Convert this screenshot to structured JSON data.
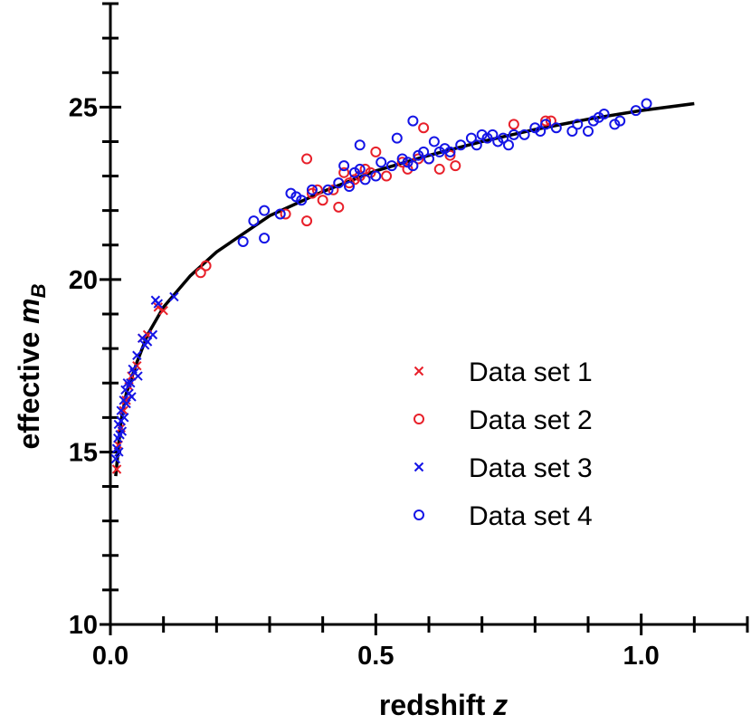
{
  "chart_data": {
    "type": "scatter",
    "xlabel": {
      "text": "redshift ",
      "var": "z"
    },
    "ylabel": {
      "text": "effective ",
      "var": "m",
      "sub": "B"
    },
    "xlim": [
      0,
      1.2
    ],
    "ylim": [
      10,
      28
    ],
    "x_major_ticks": [
      0.0,
      0.5,
      1.0
    ],
    "x_tick_labels": [
      "0.0",
      "0.5",
      "1.0"
    ],
    "y_major_ticks": [
      10,
      15,
      20,
      25
    ],
    "y_tick_labels": [
      "10",
      "15",
      "20",
      "25"
    ],
    "grid": false,
    "legend_position": "lower-right",
    "fit_curve": {
      "x": [
        0.01,
        0.02,
        0.03,
        0.05,
        0.07,
        0.1,
        0.15,
        0.2,
        0.3,
        0.4,
        0.5,
        0.6,
        0.7,
        0.8,
        0.9,
        1.0,
        1.1
      ],
      "y": [
        14.3,
        15.9,
        16.7,
        17.6,
        18.4,
        19.2,
        20.1,
        20.8,
        21.85,
        22.55,
        23.15,
        23.6,
        24.0,
        24.35,
        24.65,
        24.9,
        25.1
      ]
    },
    "series": [
      {
        "name": "Data set 1",
        "marker": "cross",
        "color": "#e8202a",
        "x": [
          0.012,
          0.015,
          0.02,
          0.025,
          0.03,
          0.035,
          0.04,
          0.05,
          0.06,
          0.07,
          0.09,
          0.1
        ],
        "y": [
          14.5,
          15.2,
          15.7,
          16.2,
          16.5,
          16.9,
          17.2,
          17.5,
          18.3,
          18.4,
          19.2,
          19.1
        ]
      },
      {
        "name": "Data set 2",
        "marker": "circle",
        "color": "#e8202a",
        "x": [
          0.17,
          0.18,
          0.33,
          0.37,
          0.37,
          0.38,
          0.39,
          0.4,
          0.42,
          0.43,
          0.44,
          0.45,
          0.46,
          0.47,
          0.48,
          0.49,
          0.5,
          0.52,
          0.55,
          0.56,
          0.58,
          0.59,
          0.6,
          0.62,
          0.64,
          0.65,
          0.76,
          0.82,
          0.83
        ],
        "y": [
          20.2,
          20.4,
          21.9,
          23.5,
          21.7,
          22.5,
          22.6,
          22.3,
          22.6,
          22.1,
          23.1,
          22.8,
          22.9,
          23.0,
          23.2,
          23.1,
          23.7,
          23.0,
          23.4,
          23.2,
          23.5,
          24.4,
          23.5,
          23.2,
          23.6,
          23.3,
          24.5,
          24.6,
          24.6
        ]
      },
      {
        "name": "Data set 3",
        "marker": "cross",
        "color": "#1414e6",
        "x": [
          0.01,
          0.012,
          0.014,
          0.015,
          0.016,
          0.018,
          0.02,
          0.02,
          0.022,
          0.025,
          0.026,
          0.028,
          0.03,
          0.032,
          0.035,
          0.038,
          0.04,
          0.042,
          0.045,
          0.05,
          0.052,
          0.06,
          0.065,
          0.07,
          0.08,
          0.085,
          0.09,
          0.12
        ],
        "y": [
          14.8,
          15.1,
          15.4,
          15.8,
          15.0,
          15.5,
          15.9,
          16.2,
          15.6,
          16.5,
          16.0,
          16.8,
          16.4,
          17.0,
          16.7,
          17.0,
          16.6,
          17.4,
          17.3,
          17.8,
          17.2,
          18.3,
          18.1,
          18.2,
          18.4,
          19.4,
          19.3,
          19.5
        ]
      },
      {
        "name": "Data set 4",
        "marker": "circle",
        "color": "#1414e6",
        "x": [
          0.25,
          0.27,
          0.29,
          0.29,
          0.32,
          0.34,
          0.35,
          0.36,
          0.38,
          0.41,
          0.43,
          0.44,
          0.45,
          0.46,
          0.47,
          0.47,
          0.48,
          0.5,
          0.51,
          0.53,
          0.54,
          0.55,
          0.56,
          0.57,
          0.57,
          0.58,
          0.59,
          0.6,
          0.61,
          0.62,
          0.63,
          0.64,
          0.66,
          0.68,
          0.69,
          0.7,
          0.71,
          0.72,
          0.73,
          0.74,
          0.75,
          0.76,
          0.78,
          0.8,
          0.81,
          0.82,
          0.84,
          0.87,
          0.88,
          0.9,
          0.91,
          0.92,
          0.93,
          0.95,
          0.96,
          0.99,
          1.01
        ],
        "y": [
          21.1,
          21.7,
          21.2,
          22.0,
          21.9,
          22.5,
          22.4,
          22.3,
          22.6,
          22.6,
          22.8,
          23.3,
          22.7,
          23.1,
          23.9,
          23.2,
          22.9,
          23.0,
          23.4,
          23.3,
          24.1,
          23.5,
          23.4,
          24.6,
          23.3,
          23.6,
          23.7,
          23.5,
          24.0,
          23.7,
          23.8,
          23.7,
          23.9,
          24.1,
          23.9,
          24.2,
          24.1,
          24.2,
          24.0,
          24.1,
          23.9,
          24.2,
          24.2,
          24.4,
          24.3,
          24.5,
          24.4,
          24.3,
          24.5,
          24.3,
          24.6,
          24.7,
          24.8,
          24.5,
          24.6,
          24.9,
          25.1
        ]
      }
    ]
  },
  "colors": {
    "axis": "#000000",
    "curve": "#000000",
    "red": "#e8202a",
    "blue": "#1414e6"
  }
}
